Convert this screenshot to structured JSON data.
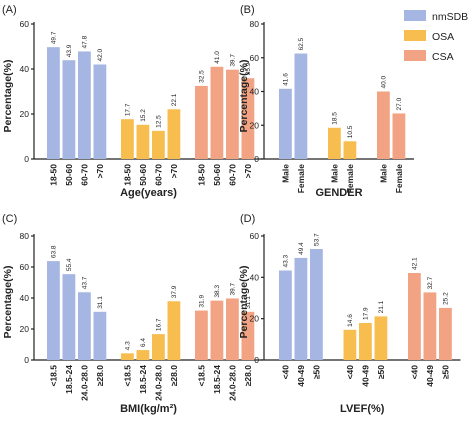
{
  "colors": {
    "nmSDB": "#a5b6e2",
    "OSA": "#f8bd4f",
    "CSA": "#f1a383"
  },
  "legend": {
    "placement": "top-right",
    "items": [
      {
        "key": "nmSDB",
        "label": "nmSDB"
      },
      {
        "key": "OSA",
        "label": "OSA"
      },
      {
        "key": "CSA",
        "label": "CSA"
      }
    ]
  },
  "chart_data": [
    {
      "panel": "(A)",
      "type": "bar",
      "xlabel": "Age(years)",
      "ylabel": "Percentage(%)",
      "ylim": [
        0,
        60
      ],
      "yticks": [
        "0",
        "20",
        "40",
        "60"
      ],
      "groups": [
        {
          "series": "nmSDB",
          "categories": [
            "18-50",
            "50-60",
            "60-70",
            ">70"
          ],
          "values": [
            49.7,
            43.9,
            47.8,
            42.0
          ],
          "labels": [
            "49.7",
            "43.9",
            "47.8",
            "42.0"
          ]
        },
        {
          "series": "OSA",
          "categories": [
            "18-50",
            "50-60",
            "60-70",
            ">70"
          ],
          "values": [
            17.7,
            15.2,
            12.5,
            22.1
          ],
          "labels": [
            "17.7",
            "15.2",
            "12.5",
            "22.1"
          ]
        },
        {
          "series": "CSA",
          "categories": [
            "18-50",
            "50-60",
            "60-70",
            ">70"
          ],
          "values": [
            32.5,
            41.0,
            39.7,
            35.9
          ],
          "labels": [
            "32.5",
            "41.0",
            "39.7",
            "35.9"
          ]
        }
      ]
    },
    {
      "panel": "(B)",
      "type": "bar",
      "xlabel": "GENDER",
      "ylabel": "Percentage(%)",
      "ylim": [
        0,
        80
      ],
      "yticks": [
        "0",
        "20",
        "40",
        "60",
        "80"
      ],
      "groups": [
        {
          "series": "nmSDB",
          "categories": [
            "Male",
            "Female"
          ],
          "values": [
            41.6,
            62.5
          ],
          "labels": [
            "41.6",
            "62.5"
          ]
        },
        {
          "series": "OSA",
          "categories": [
            "Male",
            "Female"
          ],
          "values": [
            18.5,
            10.5
          ],
          "labels": [
            "18.5",
            "10.5"
          ]
        },
        {
          "series": "CSA",
          "categories": [
            "Male",
            "Female"
          ],
          "values": [
            40.0,
            27.0
          ],
          "labels": [
            "40.0",
            "27.0"
          ]
        }
      ]
    },
    {
      "panel": "(C)",
      "type": "bar",
      "xlabel": "BMI(kg/m²)",
      "ylabel": "Percentage(%)",
      "ylim": [
        0,
        80
      ],
      "yticks": [
        "0",
        "20",
        "40",
        "60",
        "80"
      ],
      "groups": [
        {
          "series": "nmSDB",
          "categories": [
            "<18.5",
            "18.5-24",
            "24.0-28.0",
            "≥28.0"
          ],
          "values": [
            63.8,
            55.4,
            43.7,
            31.1
          ],
          "labels": [
            "63.8",
            "55.4",
            "43.7",
            "31.1"
          ]
        },
        {
          "series": "OSA",
          "categories": [
            "<18.5",
            "18.5-24",
            "24.0-28.0",
            "≥28.0"
          ],
          "values": [
            4.3,
            6.4,
            16.7,
            37.9
          ],
          "labels": [
            "4.3",
            "6.4",
            "16.7",
            "37.9"
          ]
        },
        {
          "series": "CSA",
          "categories": [
            "<18.5",
            "18.5-24",
            "24.0-28.0",
            "≥28.0"
          ],
          "values": [
            31.9,
            38.3,
            39.7,
            31.1
          ],
          "labels": [
            "31.9",
            "38.3",
            "39.7",
            "31.1"
          ]
        }
      ]
    },
    {
      "panel": "(D)",
      "type": "bar",
      "xlabel": "LVEF(%)",
      "ylabel": "Percentage(%)",
      "ylim": [
        0,
        60
      ],
      "yticks": [
        "0",
        "20",
        "40",
        "60"
      ],
      "groups": [
        {
          "series": "nmSDB",
          "categories": [
            "<40",
            "40-49",
            "≥50"
          ],
          "values": [
            43.3,
            49.4,
            53.7
          ],
          "labels": [
            "43.3",
            "49.4",
            "53.7"
          ]
        },
        {
          "series": "OSA",
          "categories": [
            "<40",
            "40-49",
            "≥50"
          ],
          "values": [
            14.6,
            17.9,
            21.1
          ],
          "labels": [
            "14.6",
            "17.9",
            "21.1"
          ]
        },
        {
          "series": "CSA",
          "categories": [
            "<40",
            "40-49",
            "≥50"
          ],
          "values": [
            42.1,
            32.7,
            25.2
          ],
          "labels": [
            "42.1",
            "32.7",
            "25.2"
          ]
        }
      ]
    }
  ]
}
